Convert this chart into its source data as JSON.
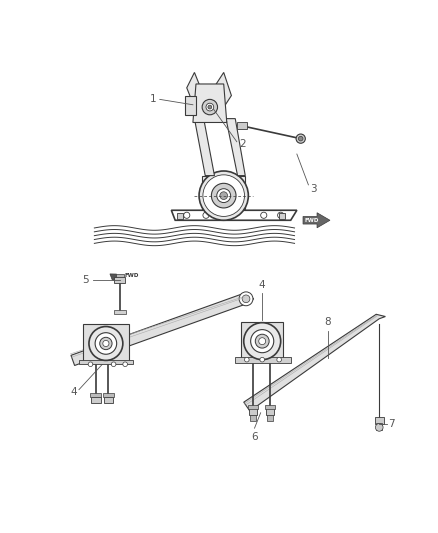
{
  "background_color": "#ffffff",
  "line_color": "#3a3a3a",
  "label_color": "#555555",
  "figsize": [
    4.38,
    5.33
  ],
  "dpi": 100
}
